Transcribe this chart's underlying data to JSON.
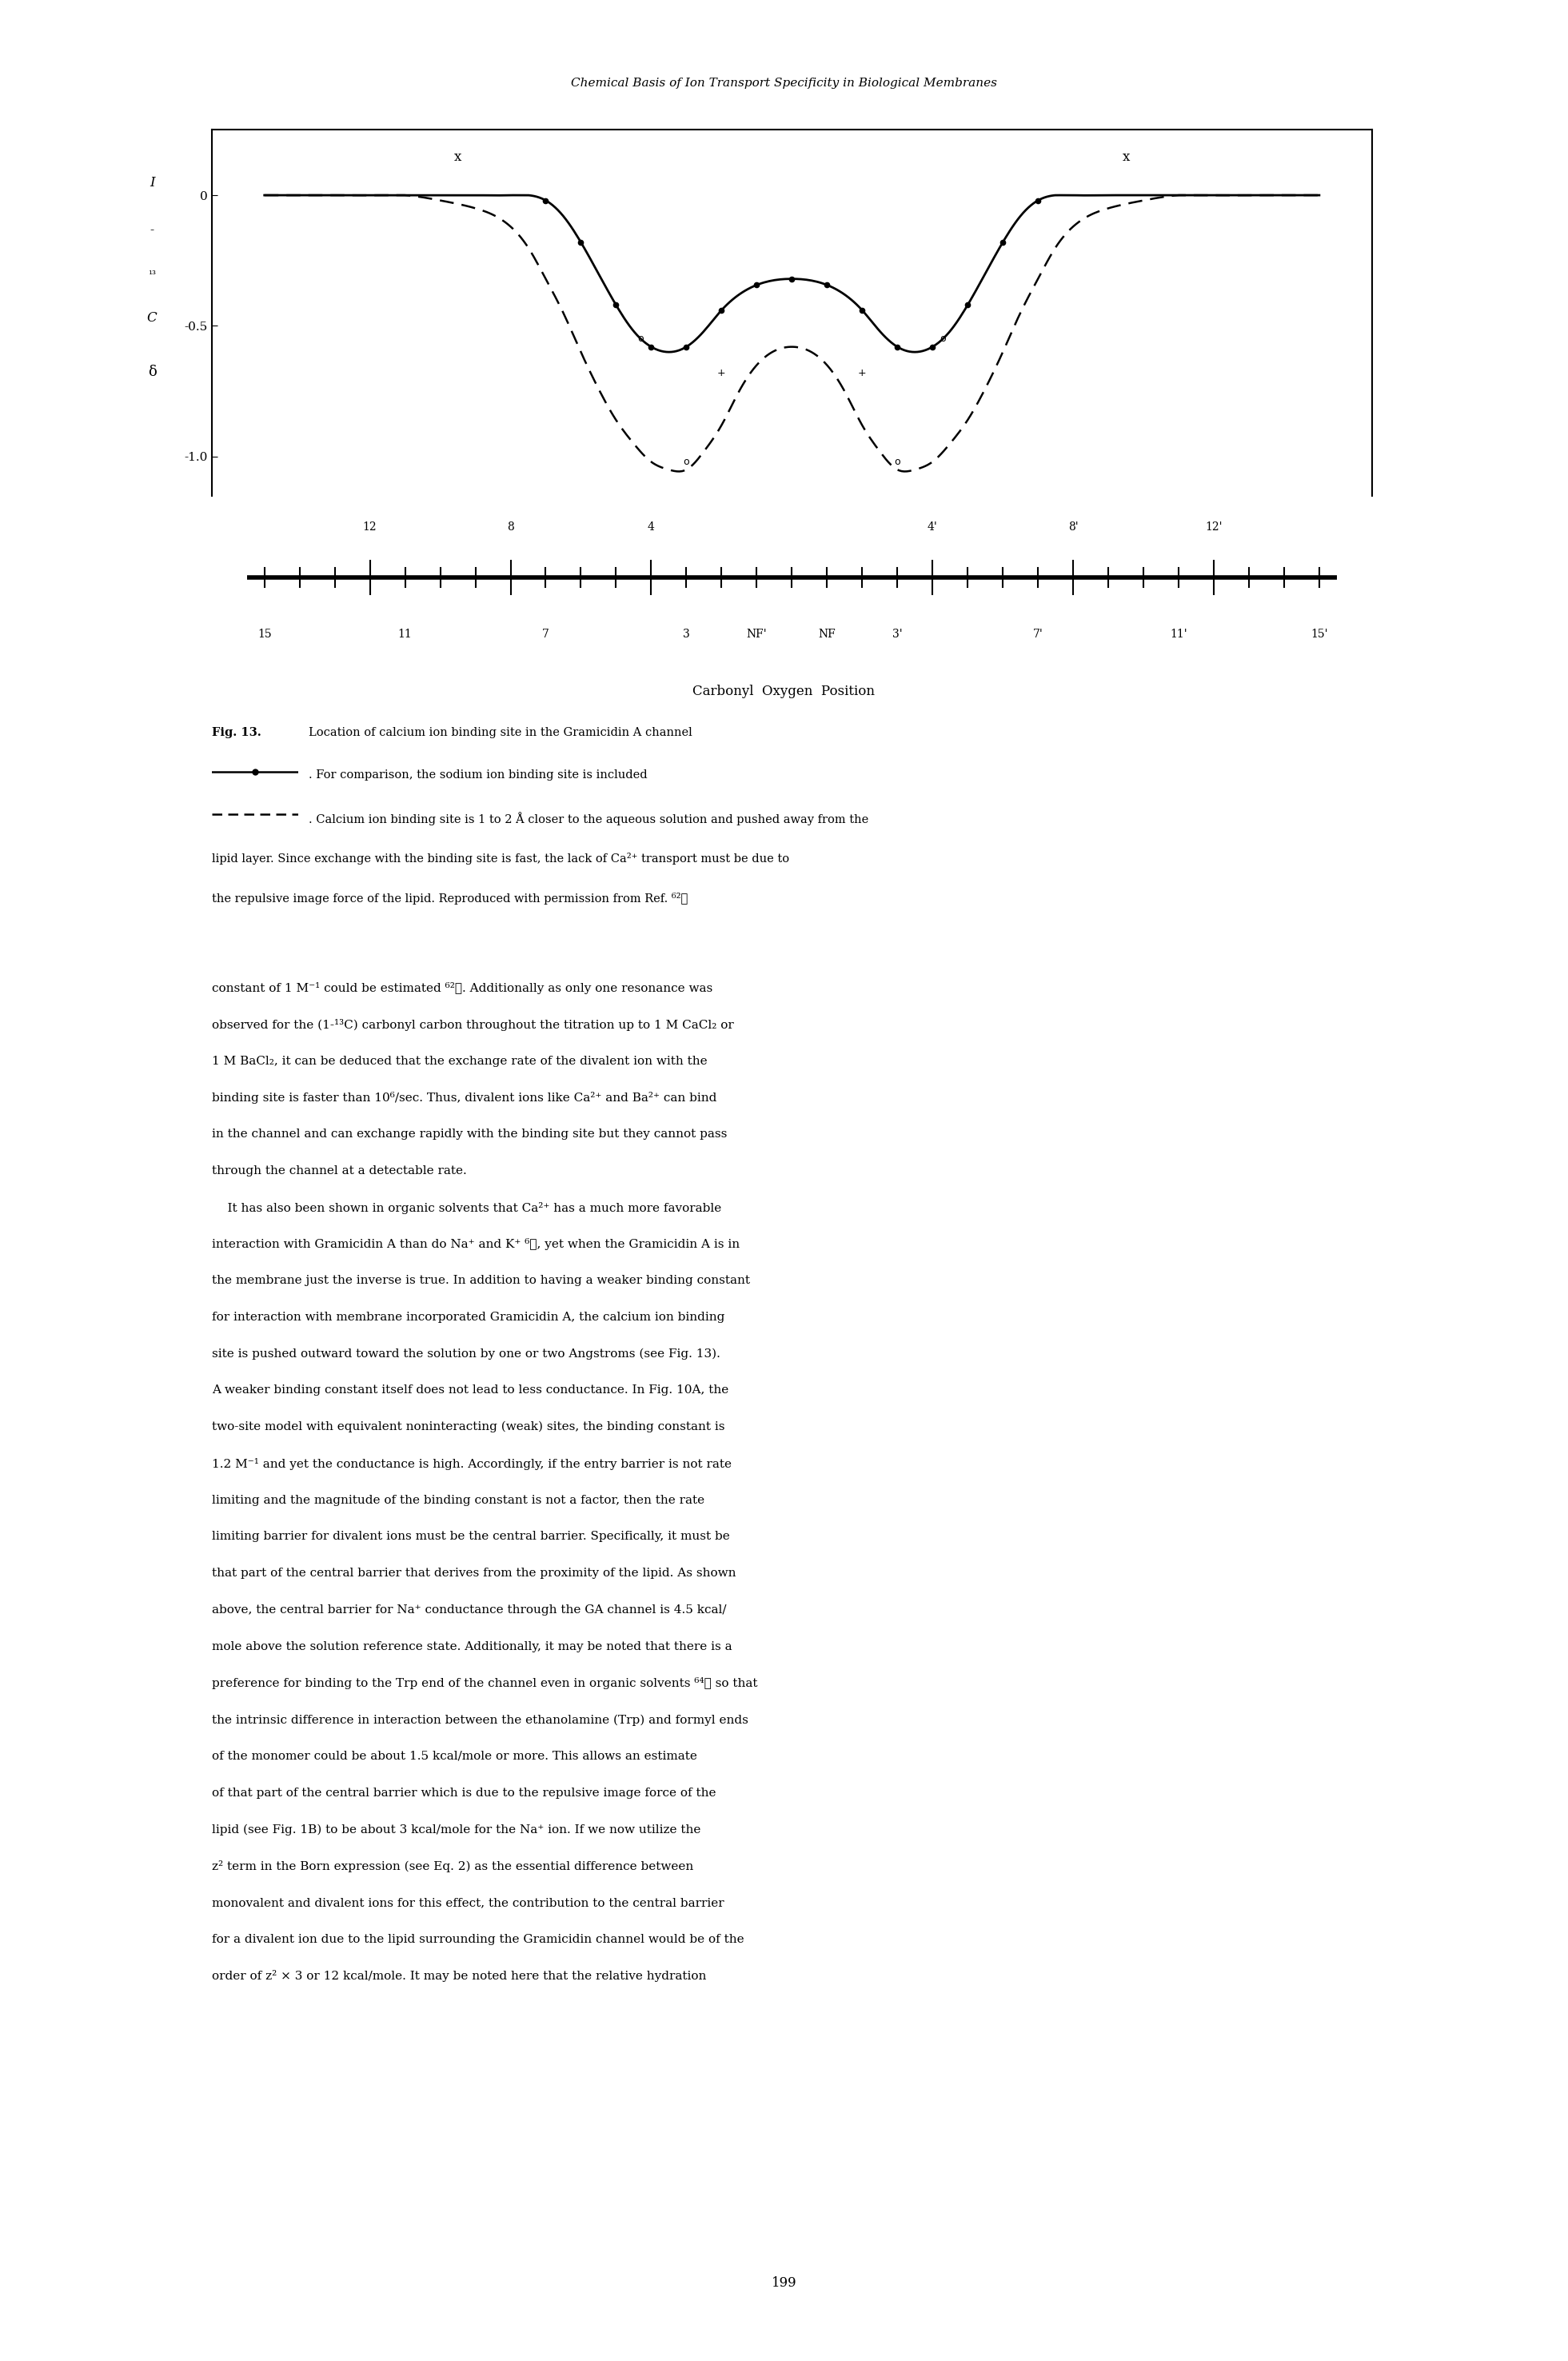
{
  "header": "Chemical Basis of Ion Transport Specificity in Biological Membranes",
  "page_number": "199",
  "ylim": [
    -1.15,
    0.25
  ],
  "solid_x": [
    -15,
    -14,
    -13,
    -12,
    -11,
    -10,
    -9,
    -8,
    -7,
    -6.5,
    -6,
    -5.5,
    -5,
    -4.5,
    -4,
    -3.5,
    -3,
    -2.5,
    -2,
    -1.5,
    0,
    1.5,
    2,
    2.5,
    3,
    3.5,
    4,
    4.5,
    5,
    5.5,
    6,
    6.5,
    7,
    8,
    9,
    10,
    11,
    12,
    13,
    14,
    15
  ],
  "solid_y": [
    0.0,
    0.0,
    0.0,
    0.0,
    0.0,
    0.0,
    0.0,
    0.0,
    -0.02,
    -0.08,
    -0.18,
    -0.3,
    -0.42,
    -0.52,
    -0.58,
    -0.6,
    -0.58,
    -0.52,
    -0.44,
    -0.38,
    -0.32,
    -0.38,
    -0.44,
    -0.52,
    -0.58,
    -0.6,
    -0.58,
    -0.52,
    -0.42,
    -0.3,
    -0.18,
    -0.08,
    -0.02,
    0.0,
    0.0,
    0.0,
    0.0,
    0.0,
    0.0,
    0.0,
    0.0
  ],
  "dashed_x": [
    -15,
    -14,
    -13,
    -12,
    -11,
    -10,
    -9,
    -8,
    -7.5,
    -7,
    -6.5,
    -6,
    -5.5,
    -5,
    -4.5,
    -4,
    -3.5,
    -3,
    -2.5,
    -2,
    -1.5,
    -1,
    0,
    1,
    1.5,
    2,
    2.5,
    3,
    3.5,
    4,
    4.5,
    5,
    5.5,
    6,
    6.5,
    7,
    7.5,
    8,
    9,
    10,
    11,
    12,
    13,
    14,
    15
  ],
  "dashed_y": [
    0.0,
    0.0,
    0.0,
    0.0,
    0.0,
    -0.02,
    -0.05,
    -0.12,
    -0.2,
    -0.32,
    -0.45,
    -0.6,
    -0.74,
    -0.86,
    -0.95,
    -1.02,
    -1.05,
    -1.05,
    -0.98,
    -0.88,
    -0.75,
    -0.65,
    -0.58,
    -0.65,
    -0.75,
    -0.88,
    -0.98,
    -1.05,
    -1.05,
    -1.02,
    -0.95,
    -0.86,
    -0.74,
    -0.6,
    -0.45,
    -0.32,
    -0.2,
    -0.12,
    -0.05,
    -0.02,
    0.0,
    0.0,
    0.0,
    0.0,
    0.0
  ],
  "top_xaxis_labels": [
    "12",
    "8",
    "4",
    "4'",
    "8'",
    "12'"
  ],
  "top_xaxis_positions": [
    -12,
    -8,
    -4,
    4,
    8,
    12
  ],
  "bottom_xaxis_labels": [
    "15",
    "11",
    "7",
    "3",
    "NF'",
    "NF",
    "3'",
    "7'",
    "11'",
    "15'"
  ],
  "bottom_xaxis_positions": [
    -15,
    -11,
    -7,
    -3,
    -1,
    1,
    3,
    7,
    11,
    15
  ],
  "caption_bold": "Fig. 13.",
  "caption_rest": " Location of calcium ion binding site in the Gramicidin A channel",
  "legend1_rest": ". For comparison, the sodium ion binding site is included",
  "legend2_line1": ". Calcium ion binding site is 1 to 2 Å closer to the aqueous solution and pushed away from the",
  "legend2_line2": "lipid layer. Since exchange with the binding site is fast, the lack of Ca²⁺ transport must be due to",
  "legend2_line3": "the repulsive image force of the lipid. Reproduced with permission from Ref. ⁶²⧩",
  "body_lines": [
    "constant of 1 M⁻¹ could be estimated ⁶²⧩. Additionally as only one resonance was",
    "observed for the (1-¹³C) carbonyl carbon throughout the titration up to 1 M CaCl₂ or",
    "1 M BaCl₂, it can be deduced that the exchange rate of the divalent ion with the",
    "binding site is faster than 10⁶/sec. Thus, divalent ions like Ca²⁺ and Ba²⁺ can bind",
    "in the channel and can exchange rapidly with the binding site but they cannot pass",
    "through the channel at a detectable rate.",
    "    It has also been shown in organic solvents that Ca²⁺ has a much more favorable",
    "interaction with Gramicidin A than do Na⁺ and K⁺ ⁶⧩, yet when the Gramicidin A is in",
    "the membrane just the inverse is true. In addition to having a weaker binding constant",
    "for interaction with membrane incorporated Gramicidin A, the calcium ion binding",
    "site is pushed outward toward the solution by one or two Angstroms (see Fig. 13).",
    "A weaker binding constant itself does not lead to less conductance. In Fig. 10A, the",
    "two-site model with equivalent noninteracting (weak) sites, the binding constant is",
    "1.2 M⁻¹ and yet the conductance is high. Accordingly, if the entry barrier is not rate",
    "limiting and the magnitude of the binding constant is not a factor, then the rate",
    "limiting barrier for divalent ions must be the central barrier. Specifically, it must be",
    "that part of the central barrier that derives from the proximity of the lipid. As shown",
    "above, the central barrier for Na⁺ conductance through the GA channel is 4.5 kcal/",
    "mole above the solution reference state. Additionally, it may be noted that there is a",
    "preference for binding to the Trp end of the channel even in organic solvents ⁶⁴⧩ so that",
    "the intrinsic difference in interaction between the ethanolamine (Trp) and formyl ends",
    "of the monomer could be about 1.5 kcal/mole or more. This allows an estimate",
    "of that part of the central barrier which is due to the repulsive image force of the",
    "lipid (see Fig. 1B) to be about 3 kcal/mole for the Na⁺ ion. If we now utilize the",
    "z² term in the Born expression (see Eq. 2) as the essential difference between",
    "monovalent and divalent ions for this effect, the contribution to the central barrier",
    "for a divalent ion due to the lipid surrounding the Gramicidin channel would be of the",
    "order of z² × 3 or 12 kcal/mole. It may be noted here that the relative hydration"
  ]
}
